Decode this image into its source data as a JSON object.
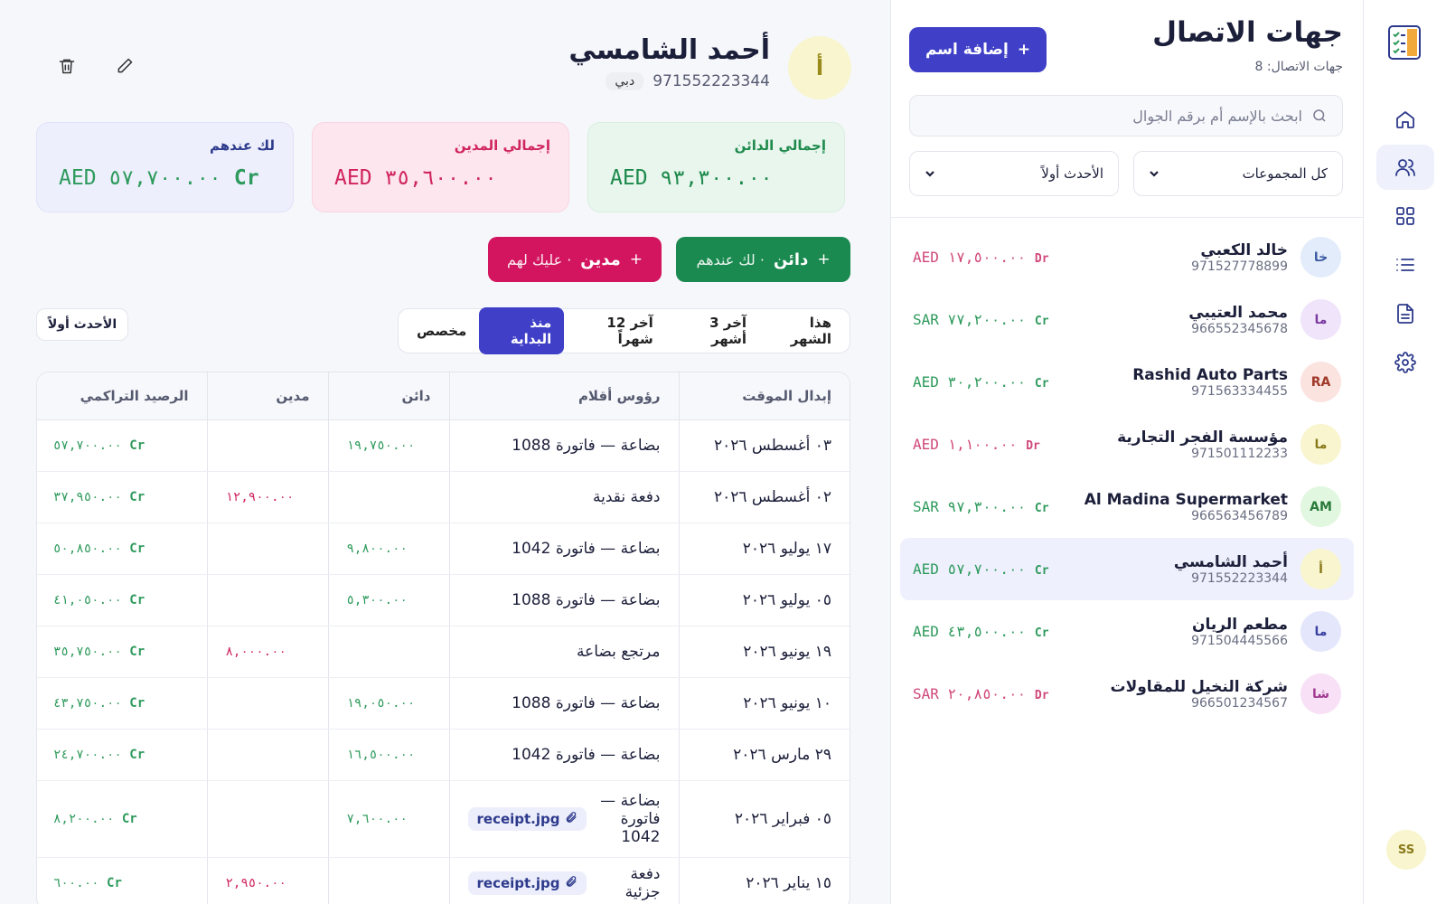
{
  "sidebar": {
    "user_initials": "SS"
  },
  "contacts_panel": {
    "title": "جهات الاتصال",
    "count": "جهات الاتصال: 8",
    "add_button": "إضافة اسم",
    "search_placeholder": "ابحث بالإسم أم برقم الجوال",
    "group_filter": "كل المجموعات",
    "sort_filter": "الأحدث أولاً",
    "contacts": [
      {
        "initials": "خا",
        "name": "خالد الكعبي",
        "phone": "971527778899",
        "balance": "AED ١٧,٥٠٠.٠٠",
        "type": "Dr"
      },
      {
        "initials": "ما",
        "name": "محمد العتيبي",
        "phone": "966552345678",
        "balance": "SAR ٧٧,٢٠٠.٠٠",
        "type": "Cr"
      },
      {
        "initials": "RA",
        "name": "Rashid Auto Parts",
        "phone": "971563334455",
        "balance": "AED ٣٠,٢٠٠.٠٠",
        "type": "Cr"
      },
      {
        "initials": "ما",
        "name": "مؤسسة الفجر التجارية",
        "phone": "971501112233",
        "balance": "AED ١,١٠٠.٠٠",
        "type": "Dr"
      },
      {
        "initials": "AM",
        "name": "Al Madina Supermarket",
        "phone": "966563456789",
        "balance": "SAR ٩٧,٣٠٠.٠٠",
        "type": "Cr"
      },
      {
        "initials": "أ",
        "name": "أحمد الشامسي",
        "phone": "971552223344",
        "balance": "AED ٥٧,٧٠٠.٠٠",
        "type": "Cr"
      },
      {
        "initials": "ما",
        "name": "مطعم الريان",
        "phone": "971504445566",
        "balance": "AED ٤٣,٥٠٠.٠٠",
        "type": "Cr"
      },
      {
        "initials": "شا",
        "name": "شركة النخيل للمقاولات",
        "phone": "966501234567",
        "balance": "SAR ٢٠,٨٥٠.٠٠",
        "type": "Dr"
      }
    ]
  },
  "contact_detail": {
    "initials": "أ",
    "name": "أحمد الشامسي",
    "phone": "971552223344",
    "city": "دبي",
    "cards": [
      {
        "label": "إجمالي الدائن",
        "amount": "AED ٩٣,٣٠٠.٠٠"
      },
      {
        "label": "إجمالي المدين",
        "amount": "AED ٣٥,٦٠٠.٠٠"
      },
      {
        "label": "لك عندهم",
        "amount": "AED ٥٧,٧٠٠.٠٠",
        "type": "Cr"
      }
    ],
    "actions": [
      {
        "label": "دائن",
        "hint": "· لك عندهم"
      },
      {
        "label": "مدين",
        "hint": "· عليك لهم"
      }
    ],
    "periods": [
      "هذا الشهر",
      "آخر 3 أشهر",
      "آخر 12 شهراً",
      "منذ البداية",
      "مخصص"
    ],
    "sort": "الأحدث أولاً",
    "table": {
      "headers": [
        "إبدال الموقت",
        "رؤوس أقلام",
        "دائن",
        "مدين",
        "الرصيد التراكمي"
      ],
      "rows": [
        {
          "date": "٠٣ أغسطس ٢٠٢٦",
          "description": "بضاعة — فاتورة 1088",
          "credit": "١٩,٧٥٠.٠٠",
          "balance": "٥٧,٧٠٠.٠٠",
          "type": "Cr"
        },
        {
          "date": "٠٢ أغسطس ٢٠٢٦",
          "description": "دفعة نقدية",
          "debit": "١٢,٩٠٠.٠٠",
          "balance": "٣٧,٩٥٠.٠٠",
          "type": "Cr"
        },
        {
          "date": "١٧ يوليو ٢٠٢٦",
          "description": "بضاعة — فاتورة 1042",
          "credit": "٩,٨٠٠.٠٠",
          "balance": "٥٠,٨٥٠.٠٠",
          "type": "Cr"
        },
        {
          "date": "٠٥ يوليو ٢٠٢٦",
          "description": "بضاعة — فاتورة 1088",
          "credit": "٥,٣٠٠.٠٠",
          "balance": "٤١,٠٥٠.٠٠",
          "type": "Cr"
        },
        {
          "date": "١٩ يونيو ٢٠٢٦",
          "description": "مرتجع بضاعة",
          "debit": "٨,٠٠٠.٠٠",
          "balance": "٣٥,٧٥٠.٠٠",
          "type": "Cr"
        },
        {
          "date": "١٠ يونيو ٢٠٢٦",
          "description": "بضاعة — فاتورة 1088",
          "credit": "١٩,٠٥٠.٠٠",
          "balance": "٤٣,٧٥٠.٠٠",
          "type": "Cr"
        },
        {
          "date": "٢٩ مارس ٢٠٢٦",
          "description": "بضاعة — فاتورة 1042",
          "credit": "١٦,٥٠٠.٠٠",
          "balance": "٢٤,٧٠٠.٠٠",
          "type": "Cr"
        },
        {
          "date": "٠٥ فبراير ٢٠٢٦",
          "description": "بضاعة — فاتورة 1042",
          "attachment": "receipt.jpg",
          "credit": "٧,٦٠٠.٠٠",
          "balance": "٨,٢٠٠.٠٠",
          "type": "Cr"
        },
        {
          "date": "١٥ يناير ٢٠٢٦",
          "description": "دفعة جزئية",
          "attachment": "receipt.jpg",
          "debit": "٢,٩٥٠.٠٠",
          "balance": "٦٠٠.٠٠",
          "type": "Cr"
        }
      ]
    }
  }
}
